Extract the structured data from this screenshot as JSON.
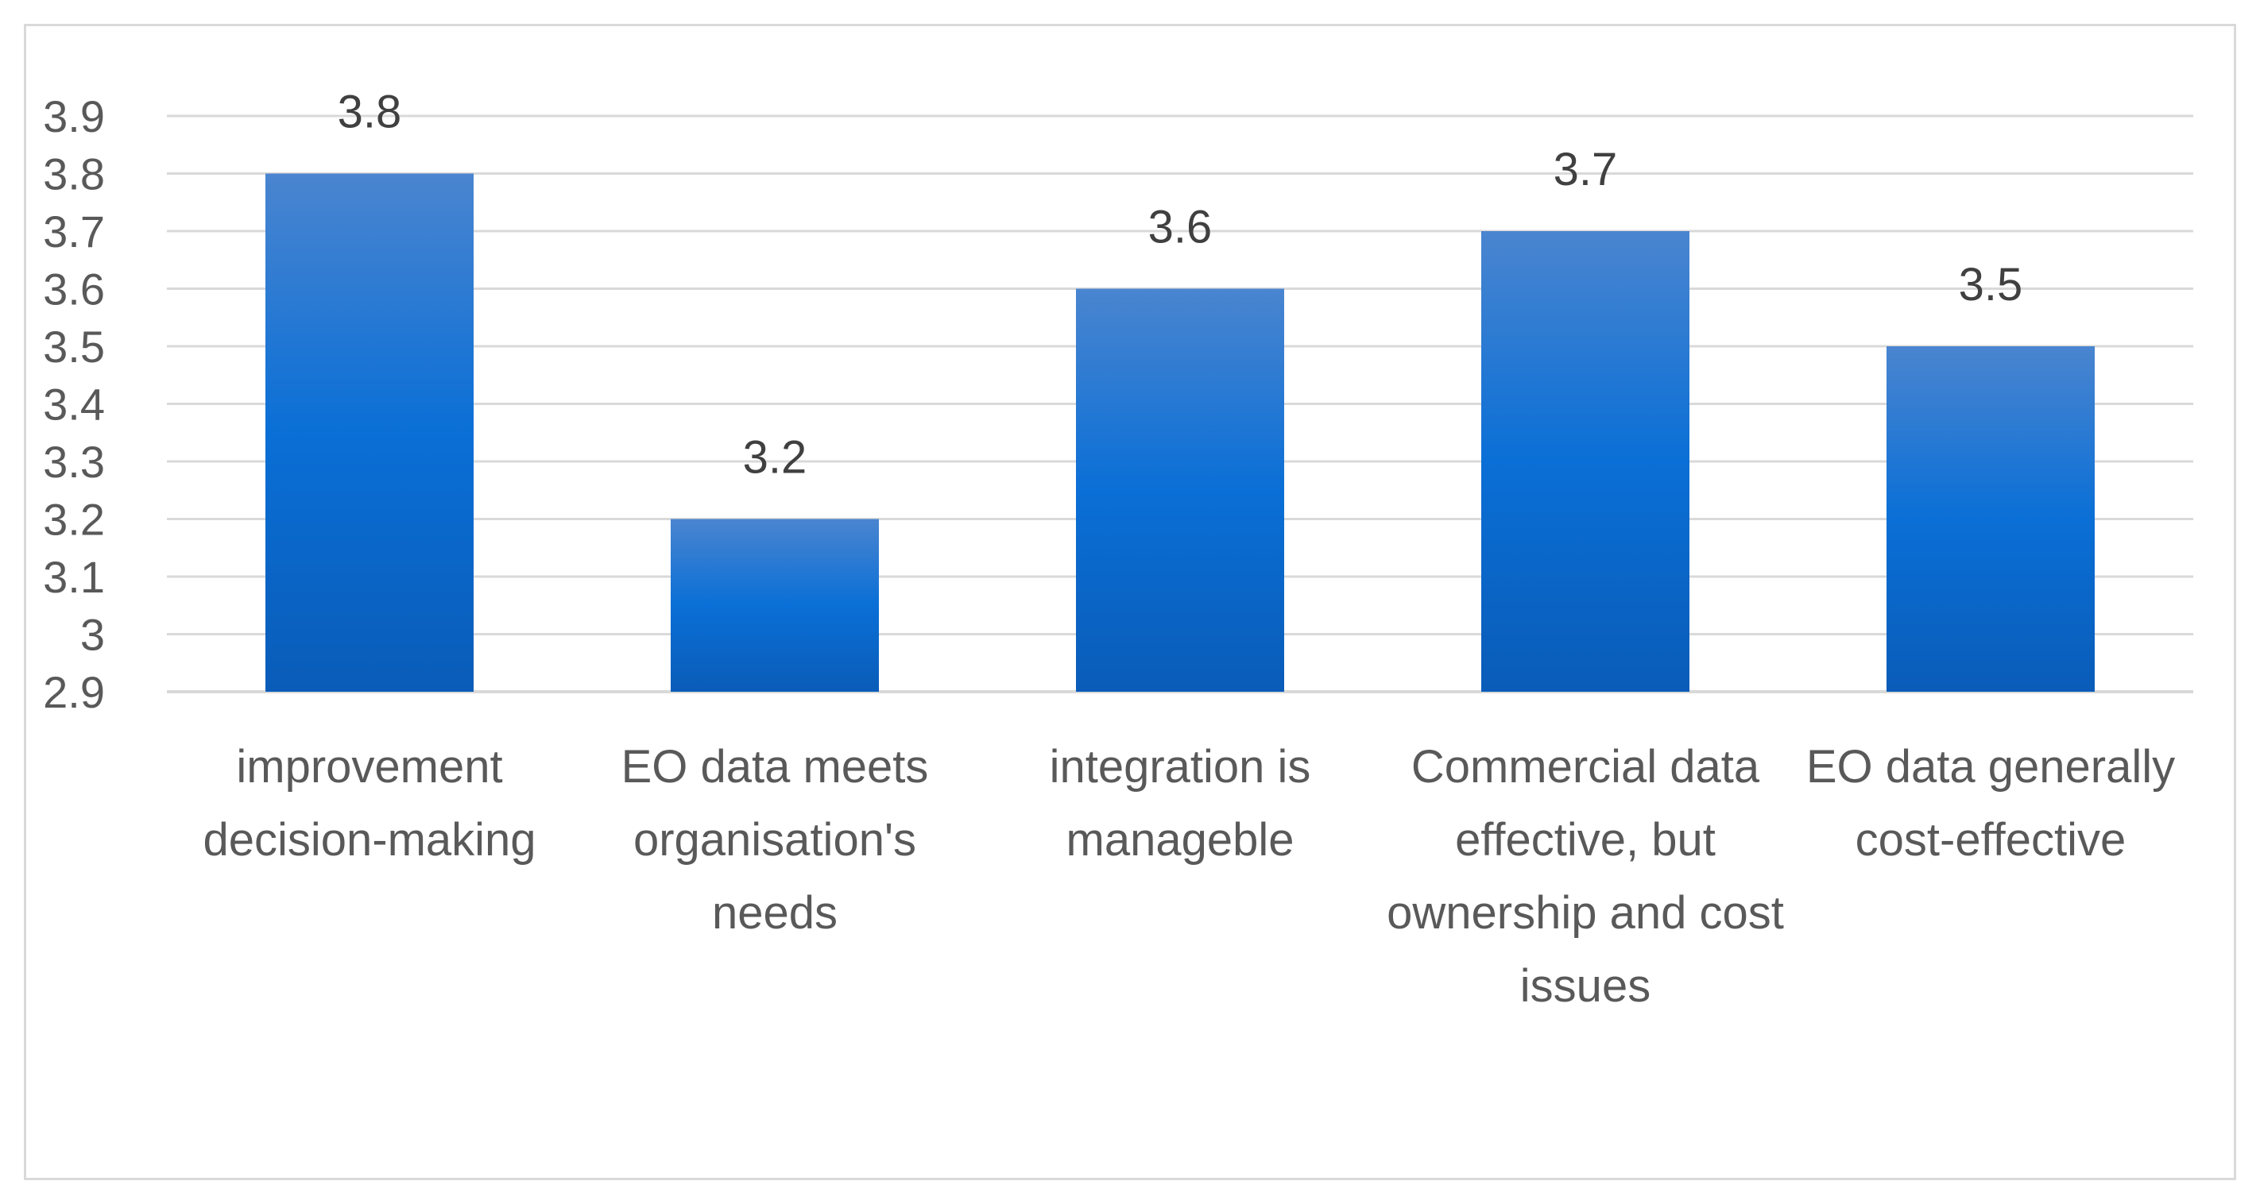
{
  "chart_data": {
    "type": "bar",
    "title": "",
    "xlabel": "",
    "ylabel": "",
    "categories": [
      "improvement decision-making",
      "EO data meets organisation's needs",
      "integration is manageble",
      "Commercial data effective, but ownership and cost issues",
      "EO data generally cost-effective"
    ],
    "values": [
      3.8,
      3.2,
      3.6,
      3.7,
      3.5
    ],
    "data_labels": [
      "3.8",
      "3.2",
      "3.6",
      "3.7",
      "3.5"
    ],
    "ylim": [
      2.9,
      3.9
    ],
    "y_ticks": [
      "2.9",
      "3",
      "3.1",
      "3.2",
      "3.3",
      "3.4",
      "3.5",
      "3.6",
      "3.7",
      "3.8",
      "3.9"
    ],
    "grid": true,
    "legend": "none",
    "colors": {
      "bar_top": "#4a85d0",
      "bar_mid": "#0a6fd6",
      "bar_bottom": "#0a5cb8",
      "grid": "#d9d9d9",
      "axis_text": "#595959",
      "label_text": "#404040"
    }
  }
}
